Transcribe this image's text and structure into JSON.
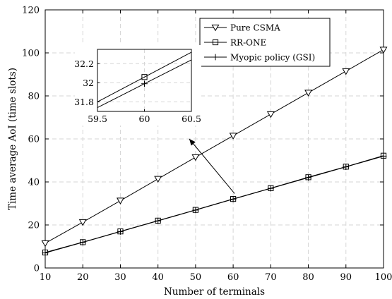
{
  "chart_data": [
    {
      "type": "line",
      "xlabel": "Number of terminals",
      "ylabel": "Time average AoI (time slots)",
      "xlim": [
        10,
        100
      ],
      "ylim": [
        0,
        120
      ],
      "x_ticks": [
        10,
        20,
        30,
        40,
        50,
        60,
        70,
        80,
        90,
        100
      ],
      "y_ticks": [
        0,
        20,
        40,
        60,
        80,
        100,
        120
      ],
      "grid": true,
      "legend_position": "top-right",
      "x": [
        10,
        20,
        30,
        40,
        50,
        60,
        70,
        80,
        90,
        100
      ],
      "series": [
        {
          "name": "Pure CSMA",
          "marker": "triangle-down",
          "values": [
            11.5,
            21.3,
            31.3,
            41.4,
            51.5,
            61.5,
            71.5,
            81.5,
            91.5,
            101.5
          ]
        },
        {
          "name": "RR-ONE",
          "marker": "square",
          "values": [
            7.2,
            12.0,
            17.0,
            22.0,
            27.0,
            32.1,
            37.1,
            42.2,
            47.1,
            52.2
          ]
        },
        {
          "name": "Myopic policy (GSI)",
          "marker": "plus",
          "values": [
            7.0,
            11.9,
            16.9,
            21.9,
            26.9,
            32.0,
            37.0,
            42.0,
            47.0,
            52.0
          ]
        }
      ]
    },
    {
      "type": "line",
      "role": "inset",
      "xlim": [
        59.5,
        60.5
      ],
      "ylim": [
        31.7,
        32.35
      ],
      "x_ticks": [
        "59.5",
        "60",
        "60.5"
      ],
      "y_ticks": [
        "31.8",
        "32",
        "32.2"
      ],
      "grid": true,
      "series": [
        {
          "name": "RR-ONE",
          "marker": "square",
          "x": [
            59.5,
            60,
            60.5
          ],
          "values": [
            31.8,
            32.06,
            32.32
          ]
        },
        {
          "name": "Myopic policy (GSI)",
          "marker": "plus",
          "x": [
            59.5,
            60,
            60.5
          ],
          "values": [
            31.74,
            31.99,
            32.24
          ]
        }
      ]
    }
  ]
}
